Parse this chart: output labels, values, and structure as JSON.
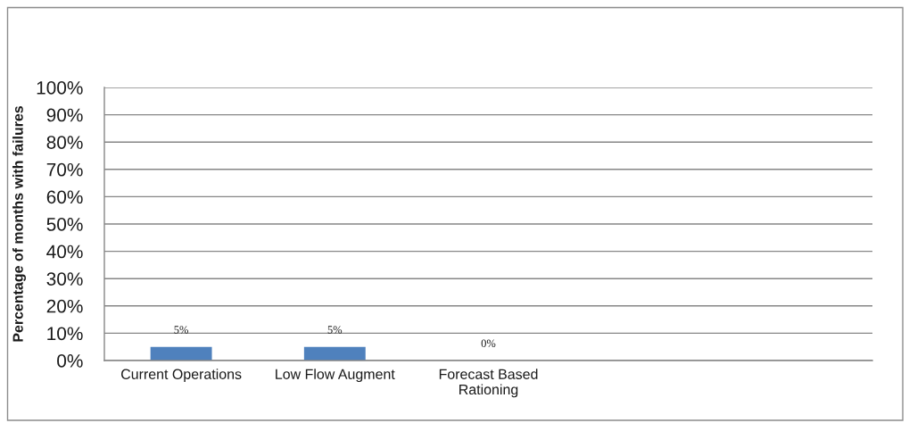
{
  "chart_data": {
    "type": "bar",
    "categories": [
      "Current Operations",
      "Low Flow Augment",
      "Forecast Based Rationing",
      null,
      null
    ],
    "values": [
      5,
      5,
      0,
      null,
      null
    ],
    "value_labels": [
      "5%",
      "5%",
      "0%",
      null,
      null
    ],
    "color": "#4f81bd",
    "ylabel": "Percentage of months with failures",
    "ylim": [
      0,
      100
    ],
    "yticks": [
      {
        "value": 0,
        "label": "0%"
      },
      {
        "value": 10,
        "label": "10%"
      },
      {
        "value": 20,
        "label": "20%"
      },
      {
        "value": 30,
        "label": "30%"
      },
      {
        "value": 40,
        "label": "40%"
      },
      {
        "value": 50,
        "label": "50%"
      },
      {
        "value": 60,
        "label": "60%"
      },
      {
        "value": 70,
        "label": "70%"
      },
      {
        "value": 80,
        "label": "80%"
      },
      {
        "value": 90,
        "label": "90%"
      },
      {
        "value": 100,
        "label": "100%"
      }
    ],
    "grid": "y"
  }
}
